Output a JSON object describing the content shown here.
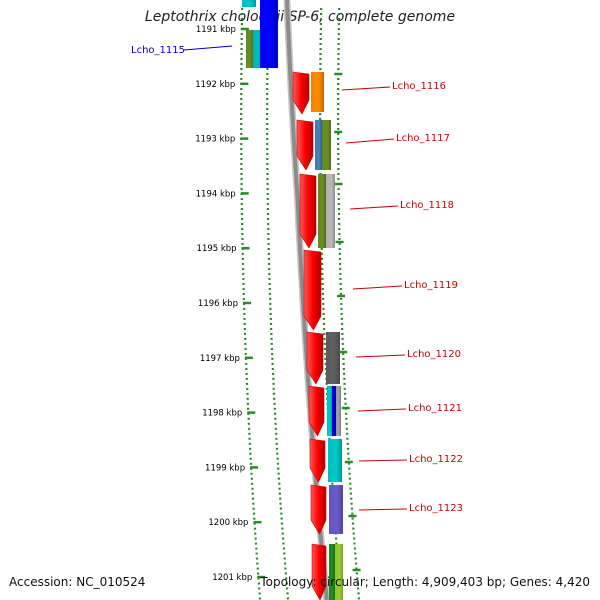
{
  "title": "Leptothrix cholodnii SP-6, complete genome",
  "footer": {
    "accession": "Accession: NC_010524",
    "topology": "Topology: circular; Length: 4,909,403 bp; Genes: 4,420"
  },
  "ruler": {
    "ticks": [
      "1191 kbp",
      "1192 kbp",
      "1193 kbp",
      "1194 kbp",
      "1195 kbp",
      "1196 kbp",
      "1197 kbp",
      "1198 kbp",
      "1199 kbp",
      "1200 kbp",
      "1201 kbp"
    ]
  },
  "gene_labels": [
    {
      "name": "Lcho_1115",
      "color": "#0000cc"
    },
    {
      "name": "Lcho_1116",
      "color": "#cc0000"
    },
    {
      "name": "Lcho_1117",
      "color": "#cc0000"
    },
    {
      "name": "Lcho_1118",
      "color": "#cc0000"
    },
    {
      "name": "Lcho_1119",
      "color": "#cc0000"
    },
    {
      "name": "Lcho_1120",
      "color": "#cc0000"
    },
    {
      "name": "Lcho_1121",
      "color": "#cc0000"
    },
    {
      "name": "Lcho_1122",
      "color": "#cc0000"
    },
    {
      "name": "Lcho_1123",
      "color": "#cc0000"
    }
  ],
  "colors": {
    "backbone": "#8c8c8c",
    "dotted_guides": "#2a8a2a",
    "gene_arrow": "#ff0000"
  }
}
